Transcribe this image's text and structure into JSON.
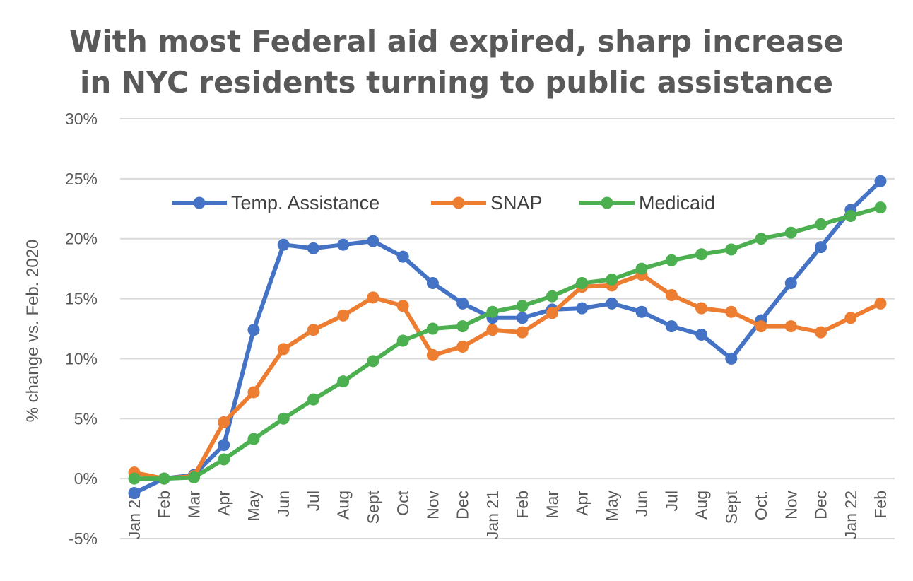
{
  "chart_data": {
    "type": "line",
    "title_lines": [
      "With most Federal aid expired, sharp increase",
      "in NYC residents turning to public assistance"
    ],
    "xlabel": "",
    "ylabel": "% change vs. Feb. 2020",
    "ylim": [
      -5,
      30
    ],
    "yticks": [
      -5,
      0,
      5,
      10,
      15,
      20,
      25,
      30
    ],
    "ytick_labels": [
      "-5%",
      "0%",
      "5%",
      "10%",
      "15%",
      "20%",
      "25%",
      "30%"
    ],
    "grid": true,
    "legend_position": "top-left",
    "categories": [
      "Jan 20",
      "Feb",
      "Mar",
      "Apr",
      "May",
      "Jun",
      "Jul",
      "Aug",
      "Sept",
      "Oct",
      "Nov",
      "Dec",
      "Jan 21",
      "Feb",
      "Mar",
      "Apr",
      "May",
      "Jun",
      "Jul",
      "Aug",
      "Sept",
      "Oct.",
      "Nov",
      "Dec",
      "Jan 22",
      "Feb"
    ],
    "series": [
      {
        "name": "Temp. Assistance",
        "color": "#4472C4",
        "values": [
          -1.2,
          0,
          0.3,
          2.8,
          12.4,
          19.5,
          19.2,
          19.5,
          19.8,
          18.5,
          16.3,
          14.6,
          13.4,
          13.4,
          14.1,
          14.2,
          14.6,
          13.9,
          12.7,
          12.0,
          10.0,
          13.2,
          16.3,
          19.3,
          22.4,
          24.8
        ]
      },
      {
        "name": "SNAP",
        "color": "#ED7D31",
        "values": [
          0.5,
          0,
          0.2,
          4.7,
          7.2,
          10.8,
          12.4,
          13.6,
          15.1,
          14.4,
          10.3,
          11.0,
          12.4,
          12.2,
          13.8,
          16.0,
          16.1,
          17.0,
          15.3,
          14.2,
          13.9,
          12.7,
          12.7,
          12.2,
          13.4,
          14.6
        ]
      },
      {
        "name": "Medicaid",
        "color": "#4CAF50",
        "values": [
          0,
          0,
          0.1,
          1.6,
          3.3,
          5.0,
          6.6,
          8.1,
          9.8,
          11.5,
          12.5,
          12.7,
          13.9,
          14.4,
          15.2,
          16.3,
          16.6,
          17.5,
          18.2,
          18.7,
          19.1,
          20.0,
          20.5,
          21.2,
          21.9,
          22.6
        ]
      }
    ]
  }
}
